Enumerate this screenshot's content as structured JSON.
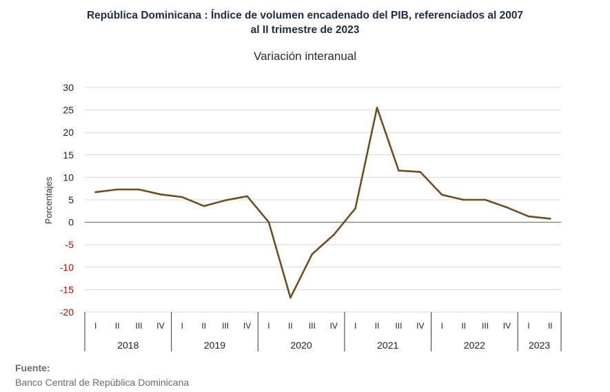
{
  "chart_data": {
    "type": "line",
    "title": "República Dominicana : Índice de volumen encadenado del PIB, referenciados al 2007",
    "title_line2": "al II trimestre de 2023",
    "subtitle": "Variación interanual",
    "ylabel": "Porcentajes",
    "xlabel": "",
    "ylim": [
      -20,
      30
    ],
    "yticks": [
      30,
      25,
      20,
      15,
      10,
      5,
      0,
      -5,
      -10,
      -15,
      -20
    ],
    "negative_tick_color": "#c00000",
    "line_color": "#6b4e22",
    "grid": true,
    "legend": "none",
    "quarters": [
      "I",
      "II",
      "III",
      "IV",
      "I",
      "II",
      "III",
      "IV",
      "I",
      "II",
      "III",
      "IV",
      "I",
      "II",
      "III",
      "IV",
      "I",
      "II",
      "III",
      "IV",
      "I",
      "II"
    ],
    "years": [
      {
        "label": "2018",
        "span": 4
      },
      {
        "label": "2019",
        "span": 4
      },
      {
        "label": "2020",
        "span": 4
      },
      {
        "label": "2021",
        "span": 4
      },
      {
        "label": "2022",
        "span": 4
      },
      {
        "label": "2023",
        "span": 2
      }
    ],
    "values": [
      6.7,
      7.3,
      7.3,
      6.2,
      5.6,
      3.6,
      4.9,
      5.8,
      0.0,
      -16.8,
      -7.1,
      -2.8,
      3.1,
      25.5,
      11.5,
      11.2,
      6.1,
      5.0,
      5.0,
      3.3,
      1.3,
      0.8
    ]
  },
  "source": {
    "label": "Fuente:",
    "text": "Banco Central de República Dominicana"
  }
}
